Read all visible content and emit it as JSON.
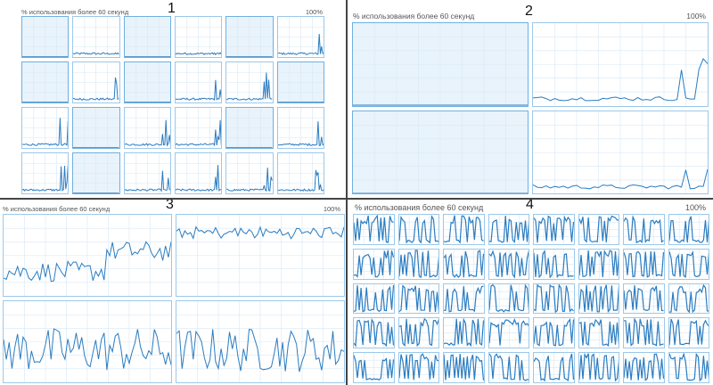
{
  "panels": [
    {
      "number": "1",
      "caption": "% использования более 60 секунд",
      "max_label": "100%",
      "cols": 6,
      "rows": 4,
      "active_cells": [
        0,
        2,
        4,
        6,
        8,
        11,
        13,
        16,
        19
      ],
      "mostly_flat": true
    },
    {
      "number": "2",
      "caption": "% использования более 60 секунд",
      "max_label": "100%",
      "cols": 2,
      "rows": 2,
      "active_cells": [
        0,
        2
      ],
      "mostly_flat": true
    },
    {
      "number": "3",
      "caption": "% использования более 60 секунд",
      "max_label": "100%",
      "cols": 2,
      "rows": 2,
      "active_cells": [],
      "mostly_flat": false
    },
    {
      "number": "4",
      "caption": "% использования более 60 секунд",
      "max_label": "100%",
      "cols": 8,
      "rows": 5,
      "active_cells": [],
      "mostly_flat": false,
      "spiky": true
    }
  ],
  "colors": {
    "line": "#2b7cc0",
    "border": "#9cc8ea",
    "grid": "#d7e8f6",
    "active_bg": "#e9f3fb"
  }
}
